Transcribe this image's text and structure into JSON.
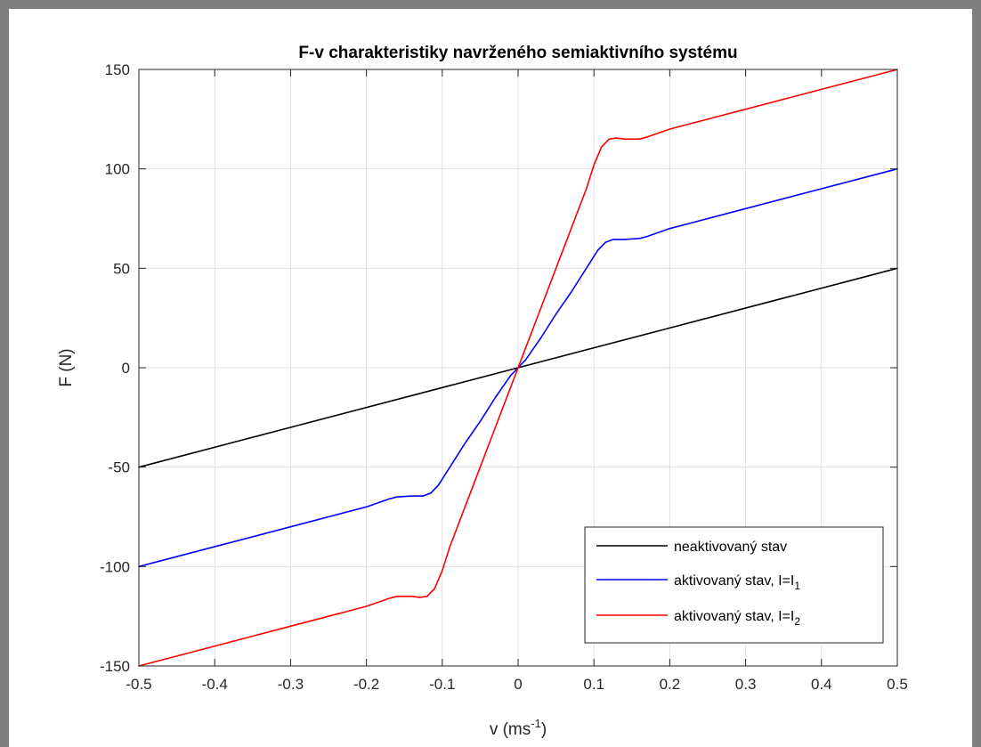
{
  "chart_data": {
    "type": "line",
    "title": "F-v charakteristiky navrženého semiaktivního systému",
    "xlabel": {
      "base": "v (ms",
      "sup": "-1",
      "tail": ")"
    },
    "ylabel": "F (N)",
    "xlim": [
      -0.5,
      0.5
    ],
    "ylim": [
      -150,
      150
    ],
    "xticks": [
      -0.5,
      -0.4,
      -0.3,
      -0.2,
      -0.1,
      0,
      0.1,
      0.2,
      0.3,
      0.4,
      0.5
    ],
    "xtick_labels": [
      "-0.5",
      "-0.4",
      "-0.3",
      "-0.2",
      "-0.1",
      "0",
      "0.1",
      "0.2",
      "0.3",
      "0.4",
      "0.5"
    ],
    "yticks": [
      -150,
      -100,
      -50,
      0,
      50,
      100,
      150
    ],
    "ytick_labels": [
      "-150",
      "-100",
      "-50",
      "0",
      "50",
      "100",
      "150"
    ],
    "grid": true,
    "legend_position": "bottom-right",
    "series": [
      {
        "name": "neaktivovaný stav",
        "legend": {
          "text": "neaktivovaný stav",
          "sub": ""
        },
        "color": "#000000",
        "x": [
          -0.5,
          0.5
        ],
        "y": [
          -50,
          50
        ]
      },
      {
        "name": "aktivovaný stav, I=I1",
        "legend": {
          "text": "aktivovaný stav, I=I",
          "sub": "1"
        },
        "color": "#0000ff",
        "x": [
          -0.5,
          -0.3,
          -0.2,
          -0.17,
          -0.16,
          -0.14,
          -0.125,
          -0.115,
          -0.105,
          -0.09,
          -0.07,
          -0.05,
          -0.03,
          -0.01,
          0,
          0.01,
          0.03,
          0.05,
          0.07,
          0.09,
          0.105,
          0.115,
          0.125,
          0.14,
          0.16,
          0.17,
          0.2,
          0.3,
          0.5
        ],
        "y": [
          -100,
          -80,
          -70,
          -66,
          -65,
          -64.5,
          -64.5,
          -63,
          -59,
          -50,
          -38,
          -27,
          -15,
          -4,
          0,
          4,
          15,
          27,
          38,
          50,
          59,
          63,
          64.5,
          64.5,
          65,
          66,
          70,
          80,
          100
        ]
      },
      {
        "name": "aktivovaný stav, I=I2",
        "legend": {
          "text": "aktivovaný stav, I=I",
          "sub": "2"
        },
        "color": "#ff0000",
        "x": [
          -0.5,
          -0.3,
          -0.2,
          -0.17,
          -0.16,
          -0.14,
          -0.13,
          -0.12,
          -0.11,
          -0.1,
          -0.09,
          -0.07,
          -0.05,
          -0.03,
          -0.01,
          0,
          0.01,
          0.03,
          0.05,
          0.07,
          0.09,
          0.1,
          0.11,
          0.12,
          0.13,
          0.14,
          0.16,
          0.17,
          0.2,
          0.3,
          0.5
        ],
        "y": [
          -150,
          -130,
          -120,
          -116,
          -115,
          -115,
          -115.5,
          -115,
          -111,
          -102,
          -90,
          -70,
          -50,
          -30,
          -10,
          0,
          10,
          30,
          50,
          70,
          90,
          102,
          111,
          115,
          115.5,
          115,
          115,
          116,
          120,
          130,
          150
        ]
      }
    ]
  }
}
